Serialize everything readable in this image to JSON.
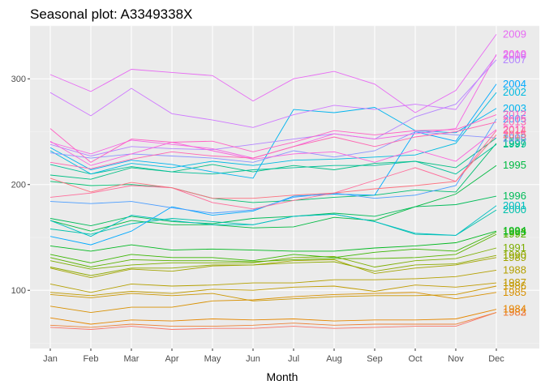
{
  "chart_data": {
    "type": "line",
    "title": "Seasonal plot: A3349338X",
    "xlabel": "Month",
    "ylabel": "",
    "categories": [
      "Jan",
      "Feb",
      "Mar",
      "Apr",
      "May",
      "Jun",
      "Jul",
      "Aug",
      "Sep",
      "Oct",
      "Nov",
      "Dec"
    ],
    "ylim": [
      45,
      350
    ],
    "yticks": [
      100,
      200,
      300
    ],
    "grid": true,
    "legend": "none",
    "series": [
      {
        "name": "1982",
        "color": "#F8766D",
        "values": [
          65,
          63,
          66,
          63,
          64,
          64,
          66,
          64,
          65,
          66,
          66,
          79
        ]
      },
      {
        "name": "1983",
        "color": "#EC8239",
        "values": [
          67,
          65,
          68,
          66,
          66,
          67,
          69,
          67,
          68,
          68,
          68,
          79
        ]
      },
      {
        "name": "1984",
        "color": "#E58700",
        "values": [
          74,
          68,
          72,
          71,
          73,
          72,
          73,
          71,
          72,
          72,
          73,
          82
        ]
      },
      {
        "name": "1985",
        "color": "#D89000",
        "values": [
          85,
          79,
          84,
          84,
          90,
          91,
          94,
          96,
          97,
          98,
          92,
          98
        ]
      },
      {
        "name": "1986",
        "color": "#CC9600",
        "values": [
          96,
          93,
          97,
          95,
          97,
          90,
          92,
          94,
          95,
          95,
          96,
          104
        ]
      },
      {
        "name": "1987",
        "color": "#C09B00",
        "values": [
          98,
          95,
          99,
          97,
          101,
          100,
          103,
          104,
          99,
          105,
          103,
          107
        ]
      },
      {
        "name": "1988",
        "color": "#B4A000",
        "values": [
          106,
          98,
          106,
          104,
          105,
          107,
          107,
          110,
          110,
          111,
          113,
          119
        ]
      },
      {
        "name": "1989",
        "color": "#A3A500",
        "values": [
          121,
          112,
          120,
          118,
          123,
          124,
          128,
          129,
          116,
          121,
          124,
          131
        ]
      },
      {
        "name": "1990",
        "color": "#8FAA00",
        "values": [
          122,
          114,
          121,
          121,
          124,
          124,
          126,
          127,
          118,
          124,
          125,
          133
        ]
      },
      {
        "name": "1991",
        "color": "#7CAE00",
        "values": [
          128,
          120,
          124,
          126,
          126,
          126,
          131,
          132,
          122,
          128,
          130,
          140
        ]
      },
      {
        "name": "1992",
        "color": "#5BB300",
        "values": [
          131,
          122,
          129,
          128,
          128,
          127,
          129,
          130,
          130,
          131,
          134,
          153
        ]
      },
      {
        "name": "1993",
        "color": "#39B600",
        "values": [
          134,
          126,
          134,
          131,
          131,
          128,
          134,
          131,
          136,
          139,
          137,
          155
        ]
      },
      {
        "name": "1994",
        "color": "#00B81F",
        "values": [
          142,
          137,
          143,
          138,
          139,
          138,
          137,
          137,
          140,
          142,
          145,
          156
        ]
      },
      {
        "name": "1995",
        "color": "#00BA42",
        "values": [
          166,
          156,
          166,
          162,
          162,
          159,
          160,
          169,
          166,
          179,
          191,
          218
        ]
      },
      {
        "name": "1996",
        "color": "#00BC59",
        "values": [
          168,
          161,
          170,
          165,
          163,
          168,
          170,
          173,
          170,
          179,
          181,
          189
        ]
      },
      {
        "name": "1997",
        "color": "#00BE70",
        "values": [
          203,
          199,
          200,
          197,
          187,
          183,
          185,
          188,
          190,
          195,
          193,
          239
        ]
      },
      {
        "name": "1998",
        "color": "#00BF84",
        "values": [
          209,
          205,
          216,
          212,
          219,
          212,
          218,
          214,
          220,
          222,
          216,
          244
        ]
      },
      {
        "name": "1999",
        "color": "#00C098",
        "values": [
          219,
          210,
          217,
          212,
          210,
          214,
          216,
          218,
          218,
          222,
          210,
          238
        ]
      },
      {
        "name": "2000",
        "color": "#00C1AB",
        "values": [
          158,
          153,
          163,
          168,
          165,
          162,
          170,
          172,
          165,
          153,
          152,
          176
        ]
      },
      {
        "name": "2001",
        "color": "#00BFC4",
        "values": [
          166,
          151,
          171,
          166,
          162,
          162,
          170,
          172,
          165,
          154,
          152,
          180
        ]
      },
      {
        "name": "2002",
        "color": "#00BAE0",
        "values": [
          232,
          210,
          220,
          216,
          222,
          218,
          223,
          224,
          226,
          228,
          239,
          287
        ]
      },
      {
        "name": "2003",
        "color": "#00B4EF",
        "values": [
          235,
          214,
          223,
          219,
          212,
          206,
          271,
          268,
          273,
          251,
          249,
          272
        ]
      },
      {
        "name": "2004",
        "color": "#00A9FF",
        "values": [
          151,
          143,
          156,
          179,
          171,
          175,
          189,
          191,
          190,
          250,
          241,
          295
        ]
      },
      {
        "name": "2005",
        "color": "#4A9DFF",
        "values": [
          184,
          182,
          184,
          178,
          173,
          176,
          188,
          192,
          187,
          190,
          199,
          262
        ]
      },
      {
        "name": "2006",
        "color": "#8B93FF",
        "values": [
          230,
          225,
          229,
          227,
          225,
          221,
          232,
          226,
          232,
          250,
          247,
          244
        ]
      },
      {
        "name": "2007",
        "color": "#B385FF",
        "values": [
          238,
          227,
          236,
          234,
          233,
          238,
          243,
          248,
          243,
          264,
          276,
          318
        ]
      },
      {
        "name": "2008",
        "color": "#CF78FF",
        "values": [
          287,
          265,
          291,
          267,
          261,
          254,
          266,
          275,
          271,
          276,
          271,
          322
        ]
      },
      {
        "name": "2009",
        "color": "#E76BF3",
        "values": [
          304,
          288,
          309,
          306,
          303,
          279,
          300,
          307,
          295,
          268,
          289,
          342
        ]
      },
      {
        "name": "2010",
        "color": "#F564E3",
        "values": [
          240,
          229,
          242,
          238,
          234,
          225,
          236,
          248,
          243,
          248,
          253,
          323
        ]
      },
      {
        "name": "2011",
        "color": "#FA62DB",
        "values": [
          241,
          218,
          229,
          240,
          232,
          224,
          229,
          231,
          221,
          233,
          222,
          252
        ]
      },
      {
        "name": "2012",
        "color": "#FF61C3",
        "values": [
          253,
          221,
          243,
          240,
          241,
          231,
          240,
          251,
          247,
          251,
          252,
          266
        ]
      },
      {
        "name": "2013",
        "color": "#FF64B0",
        "values": [
          221,
          215,
          224,
          231,
          227,
          225,
          236,
          245,
          236,
          245,
          250,
          259
        ]
      },
      {
        "name": "2014",
        "color": "#FF6C9A",
        "values": [
          188,
          192,
          199,
          197,
          183,
          177,
          185,
          192,
          204,
          216,
          203,
          251
        ]
      },
      {
        "name": "2015",
        "color": "#FC717F",
        "values": [
          206,
          193,
          202,
          197,
          187,
          187,
          190,
          192,
          196,
          199,
          203,
          247
        ]
      }
    ]
  }
}
